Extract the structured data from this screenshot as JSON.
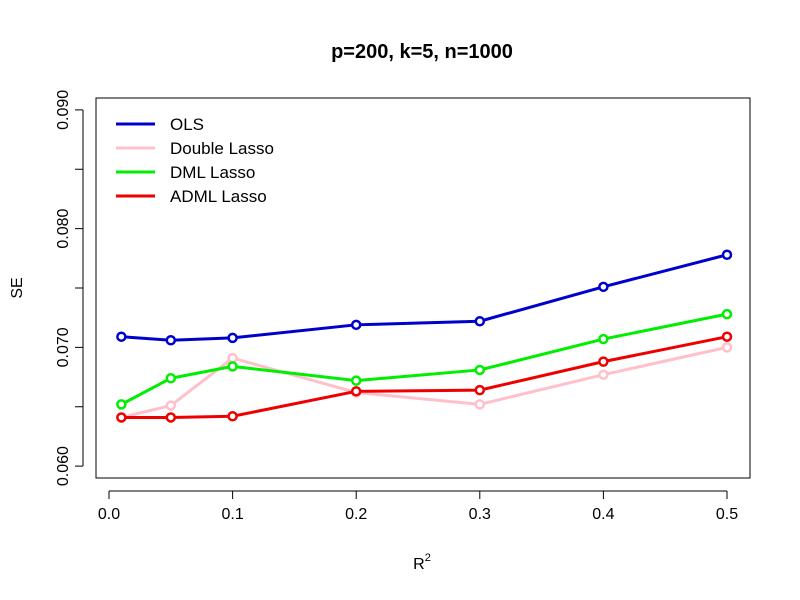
{
  "chart_data": {
    "type": "line",
    "title": "p=200, k=5, n=1000",
    "xlabel": "R",
    "xlabel_superscript": "2",
    "ylabel": "SE",
    "xlim": [
      0.0,
      0.5
    ],
    "ylim": [
      0.059,
      0.091
    ],
    "x": [
      0.01,
      0.05,
      0.1,
      0.2,
      0.3,
      0.4,
      0.5
    ],
    "x_ticks": [
      0.0,
      0.1,
      0.2,
      0.3,
      0.4,
      0.5
    ],
    "x_tick_labels": [
      "0.0",
      "0.1",
      "0.2",
      "0.3",
      "0.4",
      "0.5"
    ],
    "y_ticks": [
      0.06,
      0.065,
      0.07,
      0.075,
      0.08,
      0.085,
      0.09
    ],
    "y_tick_labels": [
      "0.060",
      "",
      "0.070",
      "",
      "0.080",
      "",
      "0.090"
    ],
    "legend_position": "top-left",
    "grid": false,
    "series": [
      {
        "name": "OLS",
        "color": "#0000cd",
        "values": [
          0.0709,
          0.0706,
          0.0708,
          0.0719,
          0.0722,
          0.0751,
          0.0778
        ]
      },
      {
        "name": "Double Lasso",
        "color": "#ffc0cb",
        "values": [
          0.0641,
          0.0651,
          0.0691,
          0.0662,
          0.0652,
          0.0677,
          0.07
        ]
      },
      {
        "name": "DML Lasso",
        "color": "#00ee00",
        "values": [
          0.0652,
          0.0674,
          0.0684,
          0.0672,
          0.0681,
          0.0707,
          0.0728
        ]
      },
      {
        "name": "ADML Lasso",
        "color": "#ee0000",
        "values": [
          0.0641,
          0.0641,
          0.0642,
          0.0663,
          0.0664,
          0.0688,
          0.0709
        ]
      }
    ]
  }
}
